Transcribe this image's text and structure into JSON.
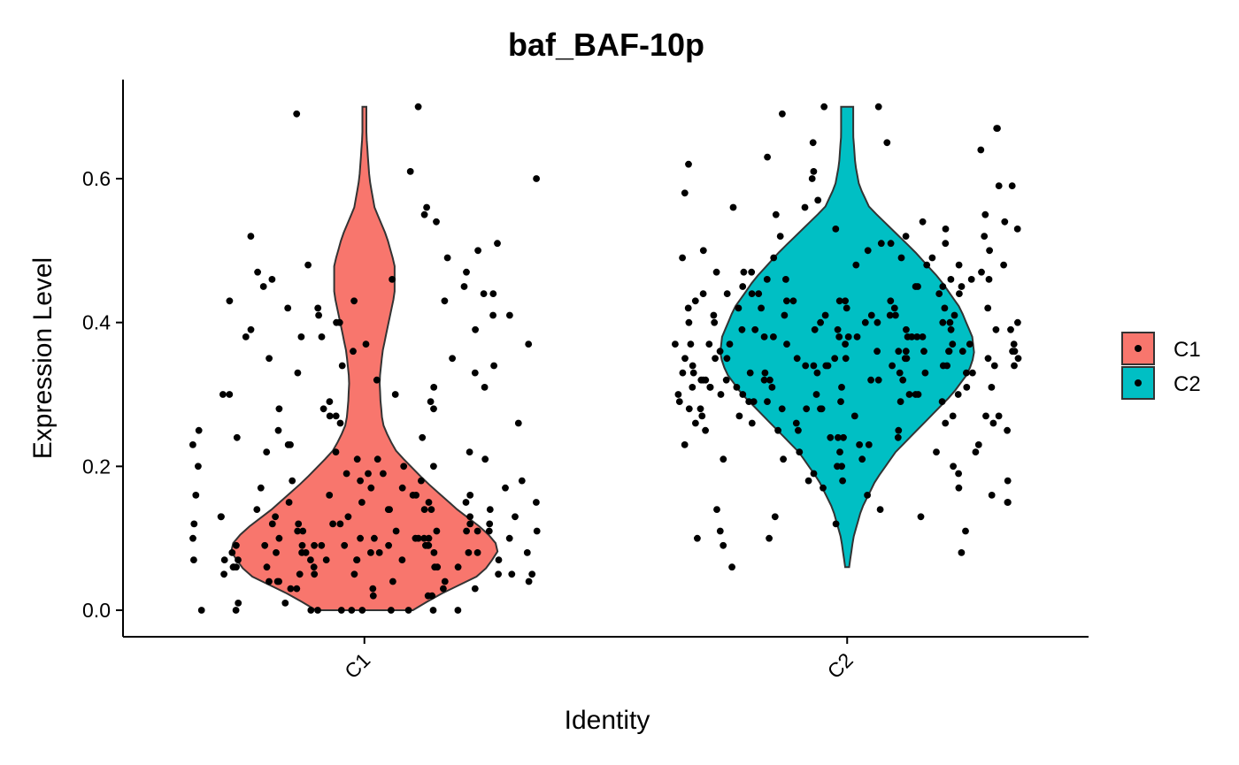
{
  "chart_data": {
    "type": "violin",
    "title": "baf_BAF-10p",
    "xlabel": "Identity",
    "ylabel": "Expression Level",
    "categories": [
      "C1",
      "C2"
    ],
    "ylim": [
      -0.035,
      0.72
    ],
    "yticks": [
      0.0,
      0.2,
      0.4,
      0.6
    ],
    "ytick_labels": [
      "0.0",
      "0.2",
      "0.4",
      "0.6"
    ],
    "grid": false,
    "legend": {
      "position": "right",
      "entries": [
        "C1",
        "C2"
      ]
    },
    "colors": {
      "C1": "#F8766D",
      "C2": "#00BFC4",
      "outline": "#333333",
      "points": "#000000"
    },
    "series": [
      {
        "name": "C1",
        "range": [
          0.0,
          0.7
        ],
        "density_profile": [
          [
            0.0,
            0.24
          ],
          [
            0.02,
            0.36
          ],
          [
            0.05,
            0.58
          ],
          [
            0.08,
            0.66
          ],
          [
            0.09,
            0.66
          ],
          [
            0.11,
            0.6
          ],
          [
            0.14,
            0.46
          ],
          [
            0.18,
            0.3
          ],
          [
            0.22,
            0.16
          ],
          [
            0.24,
            0.12
          ],
          [
            0.26,
            0.09
          ],
          [
            0.29,
            0.08
          ],
          [
            0.32,
            0.075
          ],
          [
            0.36,
            0.09
          ],
          [
            0.4,
            0.12
          ],
          [
            0.44,
            0.15
          ],
          [
            0.48,
            0.15
          ],
          [
            0.52,
            0.11
          ],
          [
            0.56,
            0.05
          ],
          [
            0.6,
            0.025
          ],
          [
            0.66,
            0.01
          ],
          [
            0.7,
            0.01
          ]
        ],
        "points_y": [
          0.7,
          0.69,
          0.61,
          0.6,
          0.56,
          0.55,
          0.52,
          0.51,
          0.54,
          0.5,
          0.49,
          0.48,
          0.47,
          0.47,
          0.46,
          0.46,
          0.45,
          0.45,
          0.44,
          0.44,
          0.43,
          0.43,
          0.43,
          0.42,
          0.42,
          0.41,
          0.41,
          0.41,
          0.4,
          0.4,
          0.39,
          0.39,
          0.38,
          0.38,
          0.38,
          0.37,
          0.37,
          0.36,
          0.35,
          0.35,
          0.34,
          0.34,
          0.33,
          0.33,
          0.32,
          0.31,
          0.31,
          0.3,
          0.3,
          0.3,
          0.29,
          0.29,
          0.28,
          0.28,
          0.28,
          0.27,
          0.27,
          0.26,
          0.26,
          0.25,
          0.25,
          0.24,
          0.24,
          0.23,
          0.23,
          0.23,
          0.22,
          0.22,
          0.22,
          0.21,
          0.21,
          0.21,
          0.2,
          0.2,
          0.2,
          0.19,
          0.19,
          0.19,
          0.18,
          0.18,
          0.18,
          0.18,
          0.17,
          0.17,
          0.17,
          0.17,
          0.16,
          0.16,
          0.16,
          0.16,
          0.16,
          0.15,
          0.15,
          0.15,
          0.15,
          0.15,
          0.14,
          0.14,
          0.14,
          0.14,
          0.14,
          0.14,
          0.13,
          0.13,
          0.13,
          0.13,
          0.13,
          0.13,
          0.12,
          0.12,
          0.12,
          0.12,
          0.12,
          0.12,
          0.12,
          0.11,
          0.11,
          0.11,
          0.11,
          0.11,
          0.11,
          0.11,
          0.11,
          0.1,
          0.1,
          0.1,
          0.1,
          0.1,
          0.1,
          0.1,
          0.1,
          0.1,
          0.09,
          0.09,
          0.09,
          0.09,
          0.09,
          0.09,
          0.09,
          0.09,
          0.09,
          0.09,
          0.08,
          0.08,
          0.08,
          0.08,
          0.08,
          0.08,
          0.08,
          0.08,
          0.08,
          0.08,
          0.07,
          0.07,
          0.07,
          0.07,
          0.07,
          0.07,
          0.07,
          0.07,
          0.07,
          0.06,
          0.06,
          0.06,
          0.06,
          0.06,
          0.06,
          0.06,
          0.06,
          0.05,
          0.05,
          0.05,
          0.05,
          0.05,
          0.05,
          0.05,
          0.04,
          0.04,
          0.04,
          0.04,
          0.04,
          0.04,
          0.03,
          0.03,
          0.03,
          0.03,
          0.03,
          0.02,
          0.02,
          0.02,
          0.01,
          0.01,
          0.0,
          0.0,
          0.0,
          0.0,
          0.0,
          0.0,
          0.0,
          0.0,
          0.0,
          0.0,
          0.0
        ]
      },
      {
        "name": "C2",
        "range": [
          0.06,
          0.7
        ],
        "density_profile": [
          [
            0.06,
            0.01
          ],
          [
            0.1,
            0.03
          ],
          [
            0.14,
            0.07
          ],
          [
            0.18,
            0.14
          ],
          [
            0.22,
            0.24
          ],
          [
            0.26,
            0.38
          ],
          [
            0.3,
            0.52
          ],
          [
            0.33,
            0.6
          ],
          [
            0.355,
            0.63
          ],
          [
            0.38,
            0.62
          ],
          [
            0.42,
            0.56
          ],
          [
            0.46,
            0.46
          ],
          [
            0.5,
            0.33
          ],
          [
            0.53,
            0.22
          ],
          [
            0.56,
            0.11
          ],
          [
            0.59,
            0.06
          ],
          [
            0.62,
            0.04
          ],
          [
            0.66,
            0.03
          ],
          [
            0.7,
            0.03
          ]
        ],
        "points_y": [
          0.7,
          0.7,
          0.69,
          0.67,
          0.67,
          0.65,
          0.65,
          0.64,
          0.63,
          0.62,
          0.61,
          0.6,
          0.59,
          0.59,
          0.58,
          0.57,
          0.56,
          0.56,
          0.55,
          0.55,
          0.54,
          0.54,
          0.53,
          0.53,
          0.53,
          0.52,
          0.52,
          0.52,
          0.51,
          0.51,
          0.51,
          0.5,
          0.5,
          0.5,
          0.49,
          0.49,
          0.49,
          0.49,
          0.48,
          0.48,
          0.48,
          0.48,
          0.47,
          0.47,
          0.47,
          0.47,
          0.46,
          0.46,
          0.46,
          0.46,
          0.46,
          0.45,
          0.45,
          0.45,
          0.45,
          0.45,
          0.44,
          0.44,
          0.44,
          0.44,
          0.44,
          0.44,
          0.43,
          0.43,
          0.43,
          0.43,
          0.43,
          0.43,
          0.42,
          0.42,
          0.42,
          0.42,
          0.42,
          0.42,
          0.42,
          0.41,
          0.41,
          0.41,
          0.41,
          0.41,
          0.41,
          0.41,
          0.4,
          0.4,
          0.4,
          0.4,
          0.4,
          0.4,
          0.4,
          0.4,
          0.39,
          0.39,
          0.39,
          0.39,
          0.39,
          0.39,
          0.39,
          0.39,
          0.38,
          0.38,
          0.38,
          0.38,
          0.38,
          0.38,
          0.38,
          0.38,
          0.38,
          0.37,
          0.37,
          0.37,
          0.37,
          0.37,
          0.37,
          0.37,
          0.37,
          0.37,
          0.36,
          0.36,
          0.36,
          0.36,
          0.36,
          0.36,
          0.36,
          0.36,
          0.36,
          0.36,
          0.35,
          0.35,
          0.35,
          0.35,
          0.35,
          0.35,
          0.35,
          0.35,
          0.35,
          0.35,
          0.34,
          0.34,
          0.34,
          0.34,
          0.34,
          0.34,
          0.34,
          0.34,
          0.34,
          0.34,
          0.33,
          0.33,
          0.33,
          0.33,
          0.33,
          0.33,
          0.33,
          0.33,
          0.33,
          0.32,
          0.32,
          0.32,
          0.32,
          0.32,
          0.32,
          0.32,
          0.32,
          0.32,
          0.31,
          0.31,
          0.31,
          0.31,
          0.31,
          0.31,
          0.31,
          0.31,
          0.3,
          0.3,
          0.3,
          0.3,
          0.3,
          0.3,
          0.3,
          0.3,
          0.29,
          0.29,
          0.29,
          0.29,
          0.29,
          0.29,
          0.29,
          0.28,
          0.28,
          0.28,
          0.28,
          0.28,
          0.28,
          0.27,
          0.27,
          0.27,
          0.27,
          0.27,
          0.27,
          0.26,
          0.26,
          0.26,
          0.26,
          0.26,
          0.25,
          0.25,
          0.25,
          0.25,
          0.25,
          0.24,
          0.24,
          0.24,
          0.24,
          0.23,
          0.23,
          0.23,
          0.23,
          0.22,
          0.22,
          0.22,
          0.22,
          0.21,
          0.21,
          0.21,
          0.2,
          0.2,
          0.2,
          0.19,
          0.19,
          0.18,
          0.18,
          0.18,
          0.17,
          0.17,
          0.16,
          0.16,
          0.15,
          0.15,
          0.14,
          0.14,
          0.13,
          0.13,
          0.12,
          0.11,
          0.11,
          0.1,
          0.1,
          0.09,
          0.08,
          0.06
        ]
      }
    ]
  }
}
